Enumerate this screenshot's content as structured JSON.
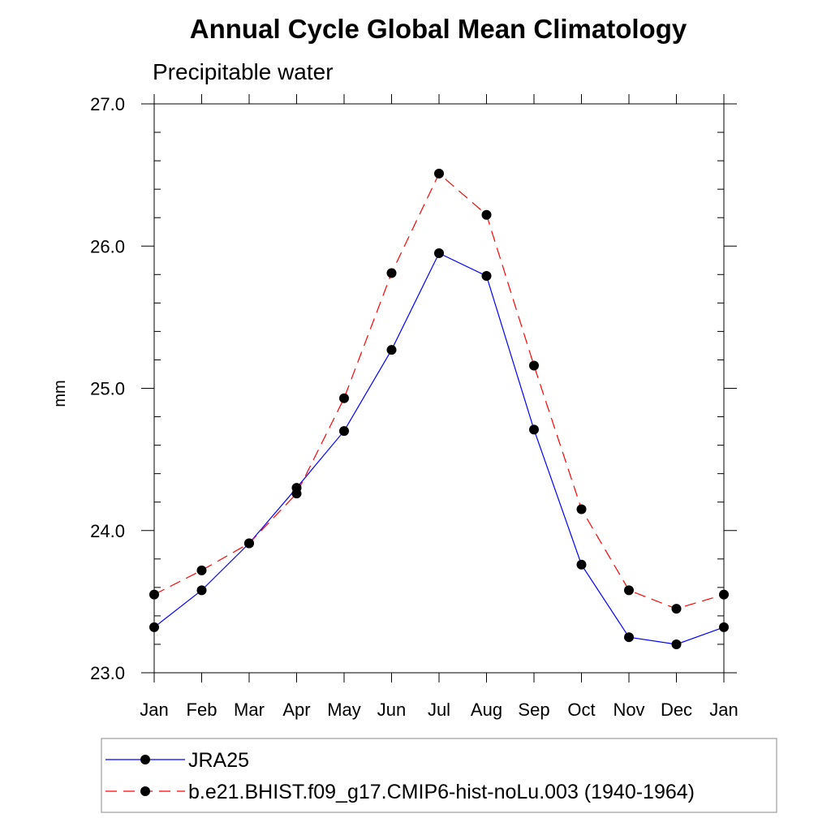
{
  "chart_data": {
    "type": "line",
    "title": "Annual Cycle Global Mean Climatology",
    "subtitle": "Precipitable water",
    "xlabel": "",
    "ylabel": "mm",
    "categories": [
      "Jan",
      "Feb",
      "Mar",
      "Apr",
      "May",
      "Jun",
      "Jul",
      "Aug",
      "Sep",
      "Oct",
      "Nov",
      "Dec",
      "Jan"
    ],
    "ylim": [
      23.0,
      27.0
    ],
    "yticks": [
      "23.0",
      "24.0",
      "25.0",
      "26.0",
      "27.0"
    ],
    "grid": false,
    "legend_position": "bottom",
    "series": [
      {
        "name": "JRA25",
        "color": "#0000ff",
        "style": "solid",
        "marker": "filled-circle",
        "values": [
          23.32,
          23.58,
          23.91,
          24.3,
          24.7,
          25.27,
          25.95,
          25.79,
          24.71,
          23.76,
          23.25,
          23.2,
          23.32
        ]
      },
      {
        "name": "b.e21.BHIST.f09_g17.CMIP6-hist-noLu.003 (1940-1964)",
        "color": "#ff0000",
        "style": "dashed",
        "marker": "filled-circle",
        "values": [
          23.55,
          23.72,
          23.91,
          24.26,
          24.93,
          25.81,
          26.51,
          26.22,
          25.16,
          24.15,
          23.58,
          23.45,
          23.55
        ]
      }
    ]
  }
}
